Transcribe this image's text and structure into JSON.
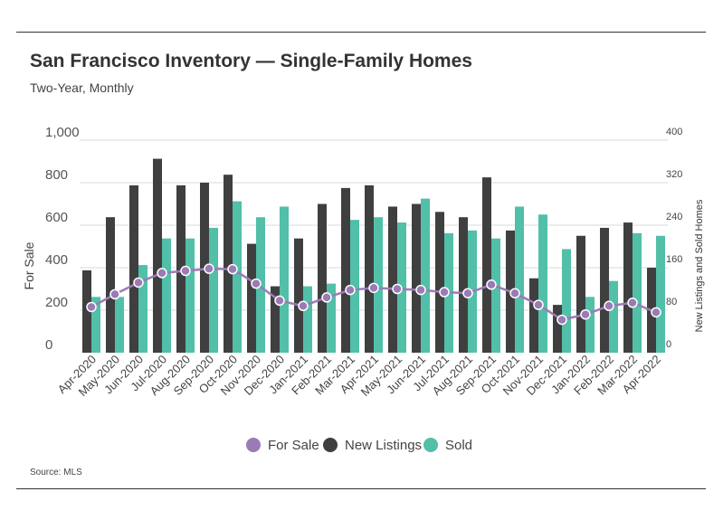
{
  "header": {
    "title": "San Francisco Inventory — Single-Family Homes",
    "subtitle": "Two-Year, Monthly"
  },
  "footer": {
    "source": "Source:  MLS"
  },
  "colors": {
    "for_sale": "#9b7bb5",
    "new_listings": "#3f3f3f",
    "sold": "#52bfa8",
    "grid": "#d9d9d9"
  },
  "chart_data": {
    "type": "bar",
    "categories": [
      "Apr-2020",
      "May-2020",
      "Jun-2020",
      "Jul-2020",
      "Aug-2020",
      "Sep-2020",
      "Oct-2020",
      "Nov-2020",
      "Dec-2020",
      "Jan-2021",
      "Feb-2021",
      "Mar-2021",
      "Apr-2021",
      "May-2021",
      "Jun-2021",
      "Jul-2021",
      "Aug-2021",
      "Sep-2021",
      "Oct-2021",
      "Nov-2021",
      "Dec-2021",
      "Jan-2022",
      "Feb-2022",
      "Mar-2022",
      "Apr-2022"
    ],
    "series": [
      {
        "name": "For Sale",
        "type": "line",
        "axis": "left",
        "values": [
          215,
          275,
          330,
          375,
          385,
          395,
          393,
          325,
          245,
          220,
          260,
          295,
          305,
          300,
          295,
          285,
          280,
          320,
          280,
          225,
          155,
          180,
          220,
          235,
          190
        ]
      },
      {
        "name": "New Listings",
        "type": "bar",
        "axis": "right",
        "values": [
          155,
          255,
          315,
          365,
          315,
          320,
          335,
          205,
          125,
          215,
          280,
          310,
          315,
          275,
          280,
          265,
          255,
          330,
          230,
          140,
          90,
          220,
          235,
          245,
          160
        ]
      },
      {
        "name": "Sold",
        "type": "bar",
        "axis": "right",
        "values": [
          105,
          105,
          165,
          215,
          215,
          235,
          285,
          255,
          275,
          125,
          130,
          250,
          255,
          245,
          290,
          225,
          230,
          215,
          275,
          260,
          195,
          105,
          135,
          225,
          220
        ]
      }
    ],
    "yaxis_left": {
      "label": "For Sale",
      "ticks": [
        "0",
        "200",
        "400",
        "600",
        "800",
        "1,000"
      ],
      "ylim": [
        0,
        1000
      ]
    },
    "yaxis_right": {
      "label": "New Listings and Sold Homes",
      "ticks": [
        "0",
        "80",
        "160",
        "240",
        "320",
        "400"
      ],
      "ylim": [
        0,
        400
      ]
    },
    "legend": {
      "position": "bottom-center",
      "items": [
        "For Sale",
        "New Listings",
        "Sold"
      ]
    },
    "grid": true
  }
}
